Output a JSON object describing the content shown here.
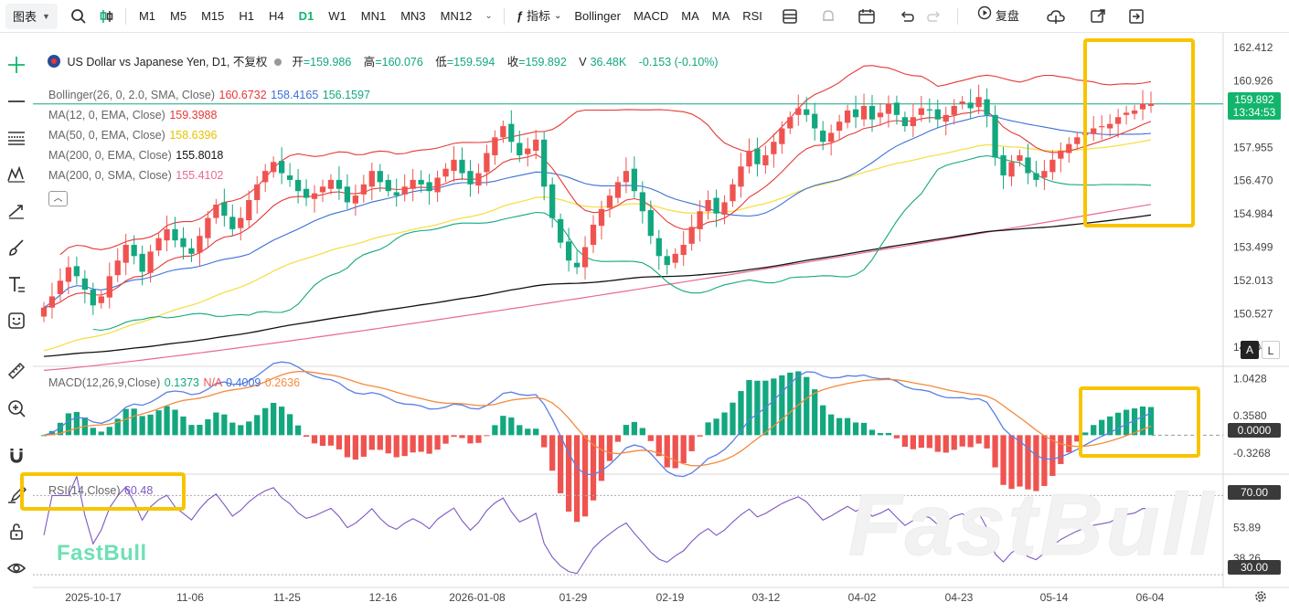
{
  "toolbar": {
    "chart_label": "图表",
    "timeframes": [
      "M1",
      "M5",
      "M15",
      "H1",
      "H4",
      "D1",
      "W1",
      "MN1",
      "MN3",
      "MN12"
    ],
    "active_timeframe": "D1",
    "indicator_label": "指标",
    "indicator_shortcuts": [
      "Bollinger",
      "MACD",
      "MA",
      "MA",
      "RSI"
    ],
    "replay_label": "复盘"
  },
  "header": {
    "symbol_title": "US Dollar vs Japanese Yen, D1, 不复权",
    "open_label": "开",
    "open_value": "=159.986",
    "high_label": "高",
    "high_value": "=160.076",
    "low_label": "低",
    "low_value": "=159.594",
    "close_label": "收",
    "close_value": "=159.892",
    "volume_label": "V",
    "volume_value": "36.48K",
    "change_value": "-0.153 (-0.10%)"
  },
  "indicators": {
    "bollinger": {
      "label": "Bollinger(26, 0, 2.0, SMA, Close)",
      "upper": "160.6732",
      "middle": "158.4165",
      "lower": "156.1597"
    },
    "ma1": {
      "label": "MA(12, 0, EMA, Close)",
      "value": "159.3988"
    },
    "ma2": {
      "label": "MA(50, 0, EMA, Close)",
      "value": "158.6396"
    },
    "ma3": {
      "label": "MA(200, 0, EMA, Close)",
      "value": "155.8018"
    },
    "ma4": {
      "label": "MA(200, 0, SMA, Close)",
      "value": "155.4102"
    },
    "macd": {
      "label": "MACD(12,26,9,Close)",
      "hist": "0.1373",
      "na": "N/A",
      "macd": "0.4009",
      "signal": "0.2636"
    },
    "rsi": {
      "label": "RSI(14,Close)",
      "value": "60.48"
    }
  },
  "price_tag": {
    "price": "159.892",
    "countdown": "13:34:53"
  },
  "price_axis": [
    "162.412",
    "160.926",
    "157.955",
    "156.470",
    "154.984",
    "153.499",
    "152.013",
    "150.527",
    "149.042"
  ],
  "macd_axis": [
    "1.0428",
    "0.3580",
    "0.0000",
    "-0.3268"
  ],
  "rsi_axis": [
    "70.00",
    "53.89",
    "38.26",
    "30.00"
  ],
  "x_axis": [
    "2025-10-17",
    "11-06",
    "11-25",
    "12-16",
    "2026-01-08",
    "01-29",
    "02-19",
    "03-12",
    "04-02",
    "04-23",
    "05-14",
    "06-04"
  ],
  "scale_buttons": {
    "auto": "A",
    "log": "L"
  },
  "watermark": "FastBull",
  "colors": {
    "up": "#ef5350",
    "down": "#13a77f",
    "bollinger": "#e53935",
    "ema12": "#e53935",
    "ema50": "#f5e04a",
    "ema200": "#111111",
    "sma200": "#e86a8e",
    "macd": "#5b7fe3",
    "signal": "#f58a3c",
    "rsi": "#7e57c2",
    "highlight": "#f7c400"
  },
  "chart_data": {
    "type": "candlestick",
    "title": "US Dollar vs Japanese Yen, D1",
    "x_ticks": [
      "2025-10-17",
      "11-06",
      "11-25",
      "12-16",
      "2026-01-08",
      "01-29",
      "02-19",
      "03-12",
      "04-02",
      "04-23",
      "05-14",
      "06-04"
    ],
    "ylim": [
      148.3,
      162.9
    ],
    "close_path": [
      150.8,
      151.3,
      152.0,
      152.6,
      152.2,
      151.6,
      150.9,
      151.3,
      152.2,
      152.9,
      153.6,
      153.1,
      152.4,
      153.3,
      153.9,
      154.3,
      153.8,
      153.5,
      153.2,
      154.0,
      154.8,
      155.4,
      154.9,
      154.3,
      154.8,
      155.6,
      156.3,
      156.9,
      157.3,
      156.8,
      156.5,
      156.0,
      155.7,
      155.9,
      156.2,
      156.5,
      156.1,
      155.5,
      155.8,
      156.3,
      156.9,
      156.4,
      156.0,
      155.8,
      156.2,
      156.5,
      156.3,
      156.0,
      156.6,
      157.0,
      157.4,
      156.8,
      156.3,
      156.8,
      157.7,
      158.4,
      158.9,
      158.2,
      157.6,
      157.9,
      158.3,
      156.2,
      154.8,
      153.7,
      152.9,
      152.6,
      153.5,
      154.5,
      155.2,
      155.8,
      156.4,
      156.9,
      156.0,
      155.1,
      154.0,
      153.1,
      152.7,
      153.2,
      153.6,
      154.4,
      155.1,
      155.6,
      155.0,
      155.5,
      156.3,
      157.1,
      157.8,
      157.2,
      157.6,
      158.2,
      158.8,
      159.3,
      159.7,
      159.4,
      158.8,
      158.2,
      158.6,
      159.1,
      159.6,
      159.3,
      159.8,
      159.2,
      159.5,
      159.9,
      159.4,
      158.9,
      159.3,
      159.7,
      159.6,
      159.2,
      159.4,
      159.8,
      160.0,
      159.7,
      160.2,
      159.4,
      157.5,
      156.7,
      157.3,
      157.6,
      156.8,
      156.5,
      156.9,
      157.4,
      157.8,
      158.1,
      158.4,
      158.6,
      158.8,
      158.9,
      159.0,
      159.3,
      159.5,
      159.6,
      159.9,
      159.892
    ],
    "indicators": {
      "bollinger": {
        "upper": 160.6732,
        "middle": 158.4165,
        "lower": 156.1597
      },
      "ema12": 159.3988,
      "ema50": 158.6396,
      "ema200": 155.8018,
      "sma200": 155.4102
    },
    "macd": {
      "hist": 0.1373,
      "macd": 0.4009,
      "signal": 0.2636,
      "ylim": [
        -0.65,
        1.2
      ]
    },
    "rsi": {
      "value": 60.48,
      "levels": [
        70,
        30
      ],
      "ylim": [
        25,
        78
      ]
    }
  }
}
